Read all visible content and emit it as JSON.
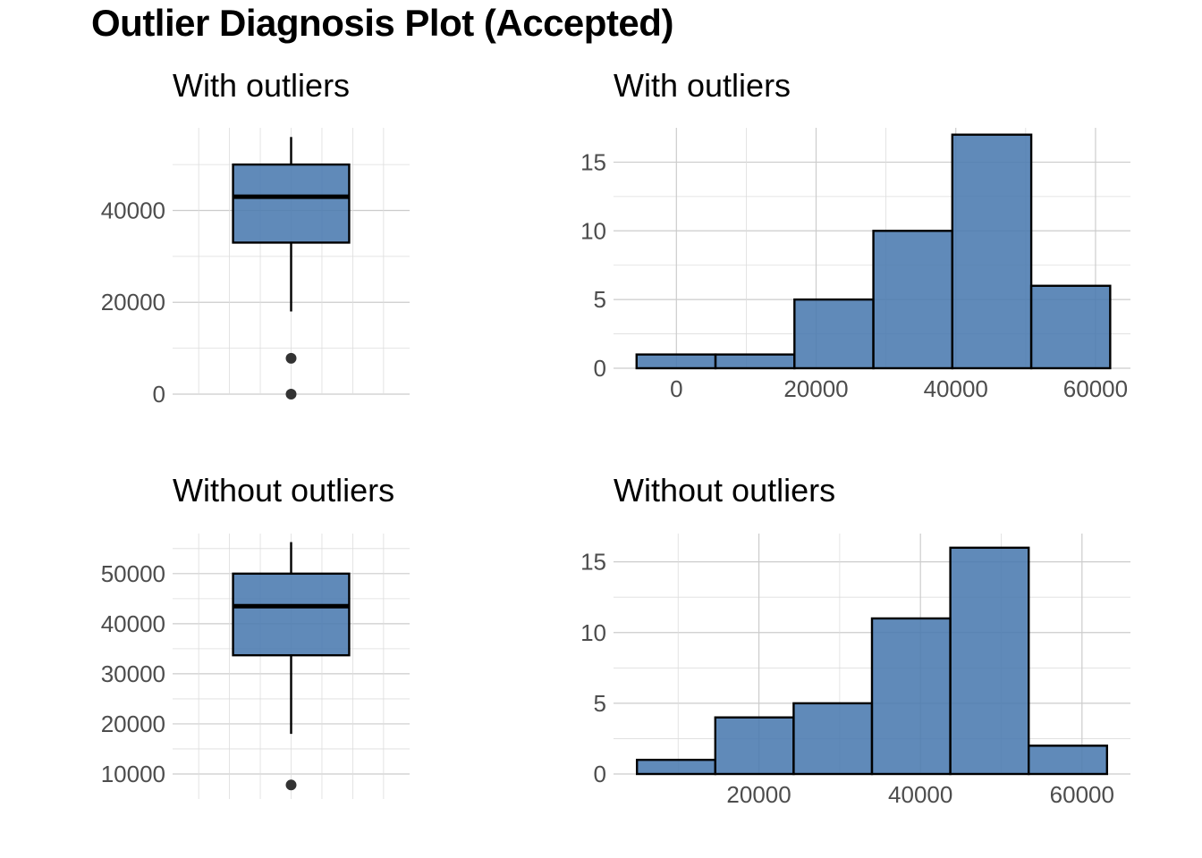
{
  "title": "Outlier Diagnosis Plot (Accepted)",
  "colors": {
    "fill": "#4a7aaf",
    "outline": "#000000",
    "outlier": "#333333",
    "grid": "#cccccc"
  },
  "chart_data": [
    {
      "type": "boxplot",
      "title": "With outliers",
      "ylim": [
        0,
        58000
      ],
      "y_ticks": [
        0,
        20000,
        40000
      ],
      "y_tick_labels": [
        "0",
        "20000",
        "40000"
      ],
      "box": {
        "lower_whisker": 18000,
        "q1": 33000,
        "median": 43000,
        "q3": 50000,
        "upper_whisker": 56000
      },
      "outliers": [
        7800,
        0
      ],
      "grid": true
    },
    {
      "type": "bar",
      "subtype": "histogram",
      "title": "With outliers",
      "xlim": [
        -9000,
        65000
      ],
      "ylim": [
        0,
        17.5
      ],
      "x_ticks": [
        0,
        20000,
        40000,
        60000
      ],
      "x_tick_labels": [
        "0",
        "20000",
        "40000",
        "60000"
      ],
      "y_ticks": [
        0,
        5,
        10,
        15
      ],
      "y_tick_labels": [
        "0",
        "5",
        "10",
        "15"
      ],
      "bins": [
        {
          "x0": -5700,
          "x1": 5600,
          "count": 1
        },
        {
          "x0": 5600,
          "x1": 16900,
          "count": 1
        },
        {
          "x0": 16900,
          "x1": 28200,
          "count": 5
        },
        {
          "x0": 28200,
          "x1": 39500,
          "count": 10
        },
        {
          "x0": 39500,
          "x1": 50800,
          "count": 17
        },
        {
          "x0": 50800,
          "x1": 62100,
          "count": 6
        }
      ],
      "grid": true
    },
    {
      "type": "boxplot",
      "title": "Without outliers",
      "ylim": [
        5000,
        58000
      ],
      "y_ticks": [
        10000,
        20000,
        30000,
        40000,
        50000
      ],
      "y_tick_labels": [
        "10000",
        "20000",
        "30000",
        "40000",
        "50000"
      ],
      "box": {
        "lower_whisker": 18000,
        "q1": 33700,
        "median": 43500,
        "q3": 50000,
        "upper_whisker": 56300
      },
      "outliers": [
        7800
      ],
      "grid": true
    },
    {
      "type": "bar",
      "subtype": "histogram",
      "title": "Without outliers",
      "xlim": [
        2000,
        66000
      ],
      "ylim": [
        0,
        17
      ],
      "x_ticks": [
        20000,
        40000,
        60000
      ],
      "x_tick_labels": [
        "20000",
        "40000",
        "60000"
      ],
      "y_ticks": [
        0,
        5,
        10,
        15
      ],
      "y_tick_labels": [
        "0",
        "5",
        "10",
        "15"
      ],
      "bins": [
        {
          "x0": 4900,
          "x1": 14600,
          "count": 1
        },
        {
          "x0": 14600,
          "x1": 24300,
          "count": 4
        },
        {
          "x0": 24300,
          "x1": 34000,
          "count": 5
        },
        {
          "x0": 34000,
          "x1": 43700,
          "count": 11
        },
        {
          "x0": 43700,
          "x1": 53400,
          "count": 16
        },
        {
          "x0": 53400,
          "x1": 63100,
          "count": 2
        }
      ],
      "grid": true
    }
  ]
}
